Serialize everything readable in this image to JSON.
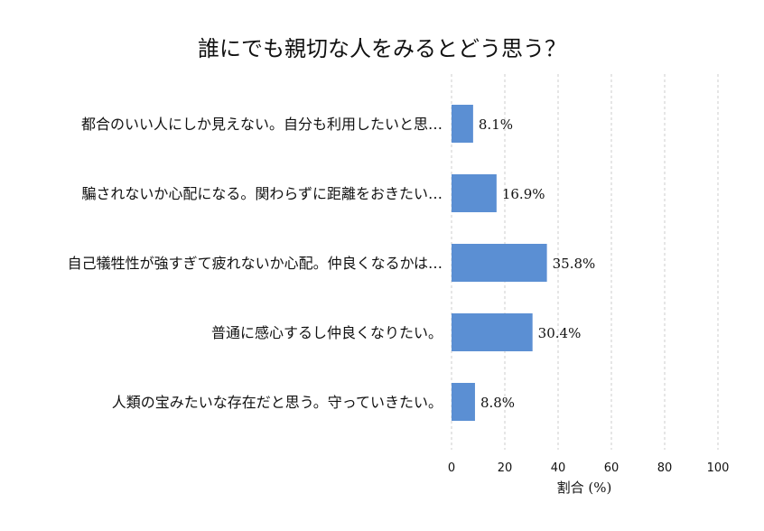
{
  "chart_data": {
    "type": "bar",
    "orientation": "horizontal",
    "title": "誰にでも親切な人をみるとどう思う？",
    "categories": [
      "都合のいい人にしか見えない。自分も利用したいと思…",
      "騙されないか心配になる。関わらずに距離をおきたい…",
      "自己犠牲性が強すぎて疲れないか心配。仲良くなるかは…",
      "普通に感心するし仲良くなりたい。",
      "人類の宝みたいな存在だと思う。守っていきたい。"
    ],
    "values": [
      8.1,
      16.9,
      35.8,
      30.4,
      8.8
    ],
    "value_labels": [
      "8.1%",
      "16.9%",
      "35.8%",
      "30.4%",
      "8.8%"
    ],
    "xlabel": "割合 (%)",
    "ylabel": "",
    "xlim": [
      0,
      100
    ],
    "xticks": [
      0,
      20,
      40,
      60,
      80,
      100
    ],
    "xtick_labels": [
      "0",
      "20",
      "40",
      "60",
      "80",
      "100"
    ],
    "grid": true,
    "bar_color": "#5b8fd3"
  }
}
